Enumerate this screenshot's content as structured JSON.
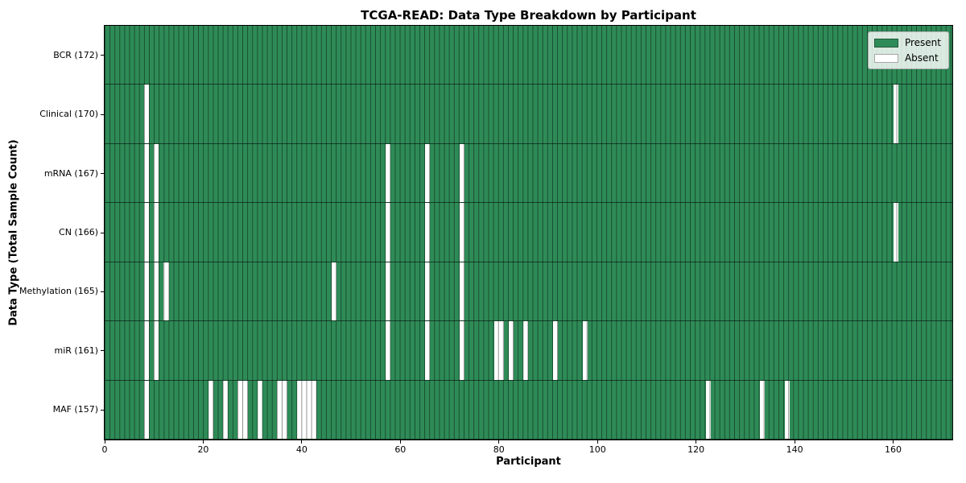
{
  "figure": {
    "title": "TCGA-READ: Data Type Breakdown by Participant",
    "xlabel": "Participant",
    "ylabel": "Data Type (Total Sample Count)"
  },
  "legend": {
    "items": [
      {
        "label": "Present",
        "color": "#2e8b57"
      },
      {
        "label": "Absent",
        "color": "#ffffff"
      }
    ]
  },
  "chart_data": {
    "type": "heatmap",
    "title": "TCGA-READ: Data Type Breakdown by Participant",
    "xlabel": "Participant",
    "ylabel": "Data Type (Total Sample Count)",
    "x_ticks": [
      0,
      20,
      40,
      60,
      80,
      100,
      120,
      140,
      160
    ],
    "xlim": [
      0,
      172
    ],
    "n_participants": 172,
    "grid": true,
    "legend_position": "upper right",
    "colors": {
      "present": "#2e8b57",
      "absent": "#ffffff",
      "cell_edge": "rgba(0,0,0,0.45)",
      "row_divider": "rgba(0,0,0,0.55)"
    },
    "rows": [
      {
        "data_type": "BCR",
        "total_sample_count": 172,
        "tick_label": "BCR (172)",
        "absent_participants": []
      },
      {
        "data_type": "Clinical",
        "total_sample_count": 170,
        "tick_label": "Clinical (170)",
        "absent_participants": [
          8,
          160
        ]
      },
      {
        "data_type": "mRNA",
        "total_sample_count": 167,
        "tick_label": "mRNA (167)",
        "absent_participants": [
          8,
          10,
          57,
          65,
          72
        ]
      },
      {
        "data_type": "CN",
        "total_sample_count": 166,
        "tick_label": "CN (166)",
        "absent_participants": [
          8,
          10,
          57,
          65,
          72,
          160
        ]
      },
      {
        "data_type": "Methylation",
        "total_sample_count": 165,
        "tick_label": "Methylation (165)",
        "absent_participants": [
          8,
          10,
          12,
          46,
          57,
          65,
          72
        ]
      },
      {
        "data_type": "miR",
        "total_sample_count": 161,
        "tick_label": "miR (161)",
        "absent_participants": [
          8,
          10,
          57,
          65,
          72,
          79,
          80,
          82,
          85,
          91,
          97
        ]
      },
      {
        "data_type": "MAF",
        "total_sample_count": 157,
        "tick_label": "MAF (157)",
        "absent_participants": [
          8,
          21,
          24,
          27,
          28,
          31,
          35,
          36,
          39,
          40,
          41,
          42,
          122,
          133,
          138
        ]
      }
    ]
  }
}
